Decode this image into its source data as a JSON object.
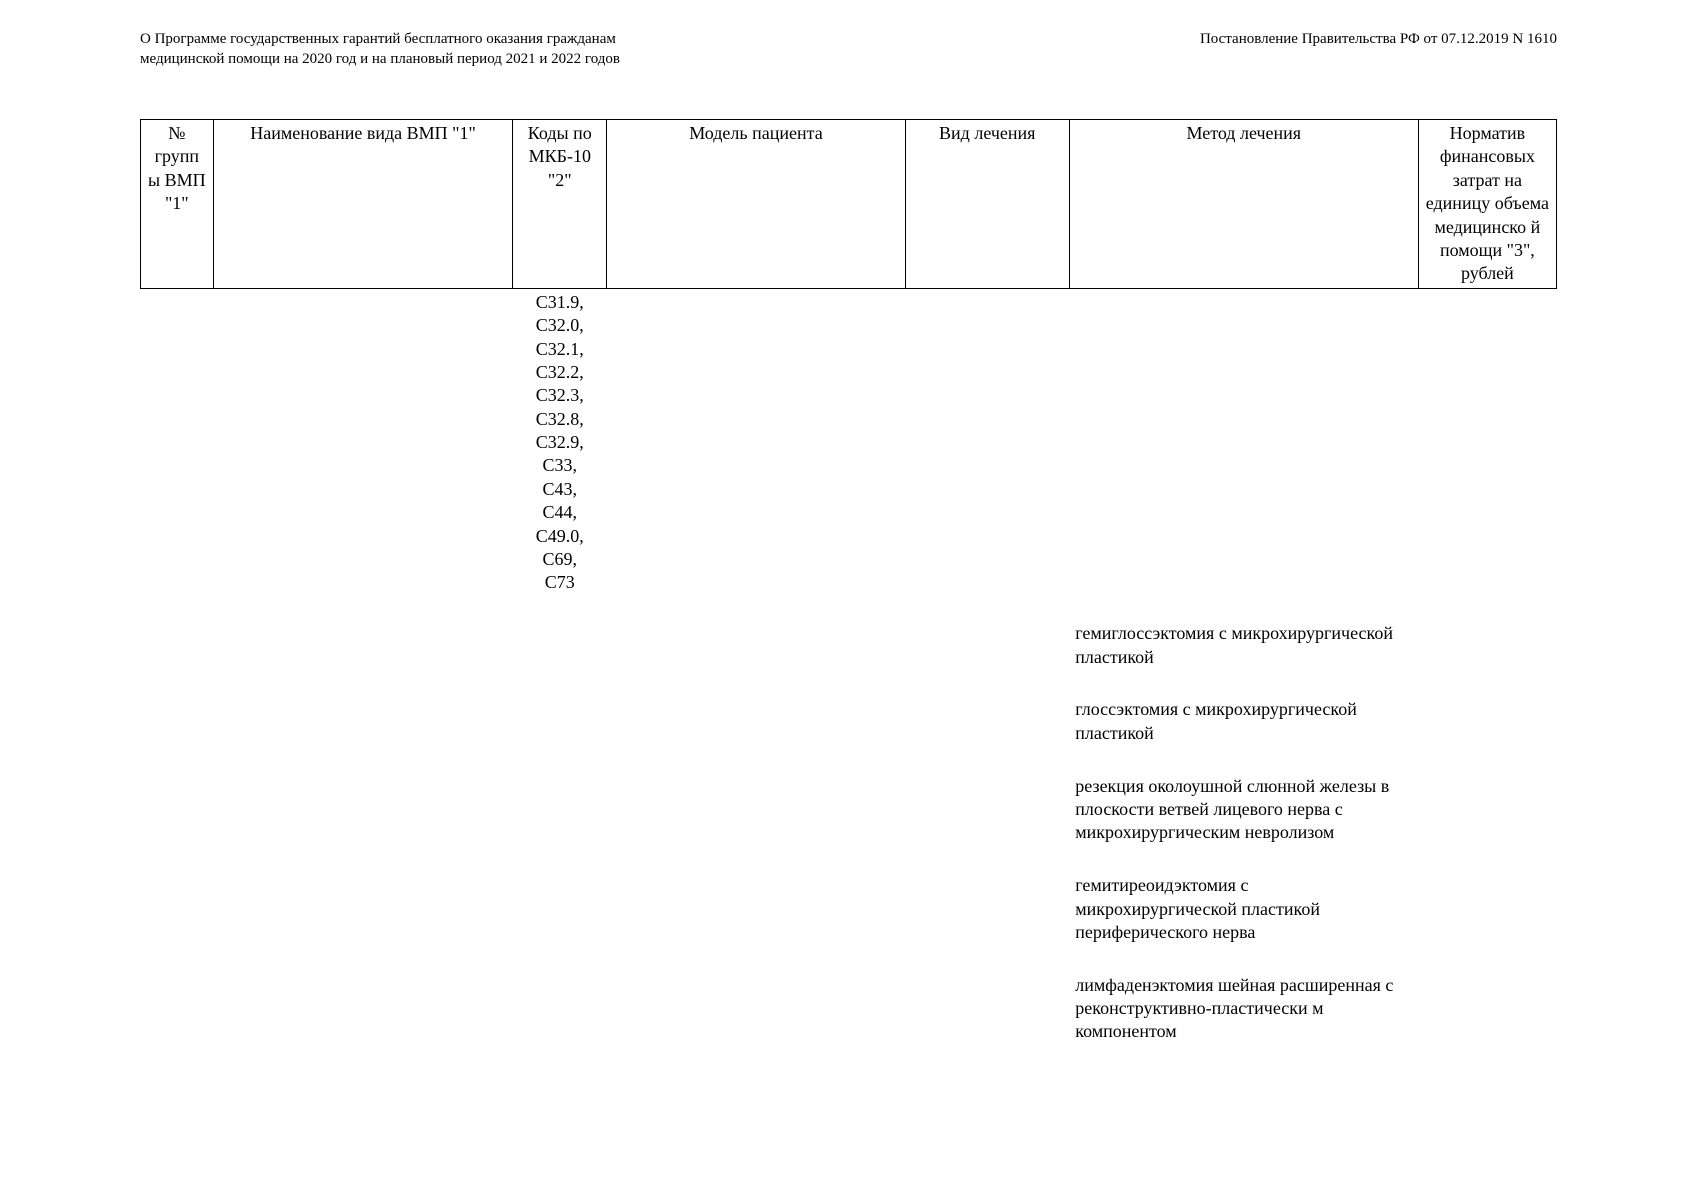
{
  "header": {
    "left": "О Программе государственных гарантий бесплатного оказания гражданам медицинской помощи на 2020 год и на плановый период 2021 и 2022 годов",
    "right": "Постановление Правительства РФ от 07.12.2019 N 1610"
  },
  "table": {
    "columns": [
      "№ групп ы ВМП \"1\"",
      "Наименование вида ВМП \"1\"",
      "Коды по МКБ-10 \"2\"",
      "Модель пациента",
      "Вид лечения",
      "Метод лечения",
      "Норматив финансовых затрат на единицу объема медицинско й помощи \"3\", рублей"
    ],
    "row": {
      "codes": "C31.9,\nC32.0,\nC32.1,\nC32.2,\nC32.3,\nC32.8,\nC32.9,\nC33,\nC43,\nC44,\nC49.0,\nC69,\nC73",
      "methods": [
        "гемиглоссэктомия с микрохирургической пластикой",
        "глоссэктомия с микрохирургической пластикой",
        "резекция околоушной слюнной железы в плоскости ветвей лицевого нерва с микрохирургическим невролизом",
        "гемитиреоидэктомия с микрохирургической пластикой периферического нерва",
        "лимфаденэктомия шейная расширенная с реконструктивно-пластически м компонентом"
      ]
    }
  }
}
